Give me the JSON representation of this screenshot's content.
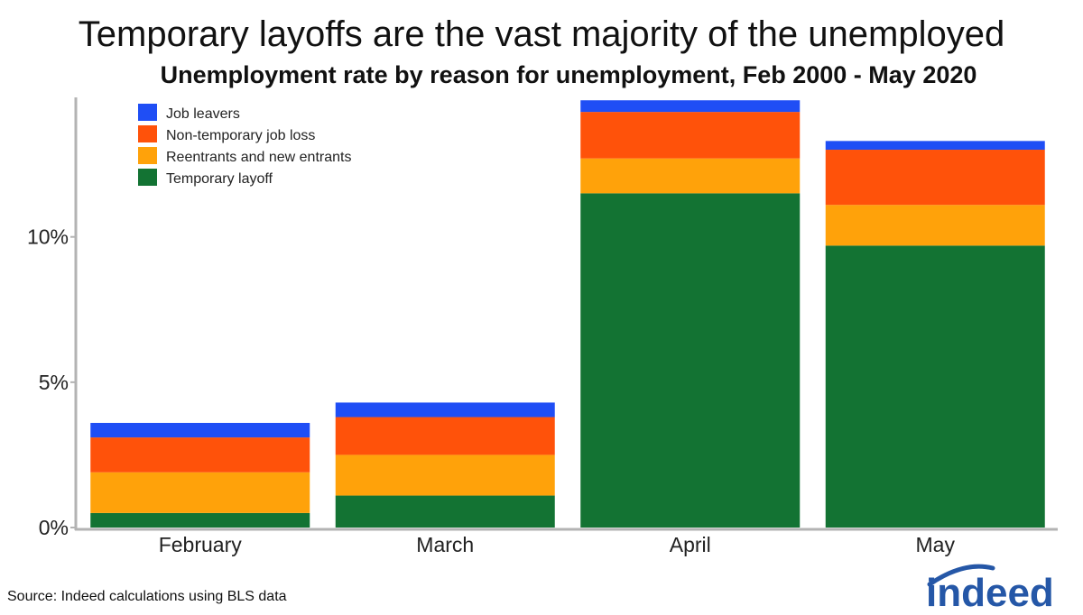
{
  "title": "Temporary layoffs are the vast majority of the unemployed",
  "subtitle": "Unemployment rate by reason for unemployment, Feb 2000 - May 2020",
  "source": "Source: Indeed calculations using BLS data",
  "logo_text": "indeed",
  "chart_data": {
    "type": "bar",
    "stacked": true,
    "categories": [
      "February",
      "March",
      "April",
      "May"
    ],
    "series": [
      {
        "name": "Temporary layoff",
        "color": "#137333",
        "values": [
          0.5,
          1.1,
          11.5,
          9.7
        ]
      },
      {
        "name": "Reentrants and new entrants",
        "color": "#FFA20A",
        "values": [
          1.4,
          1.4,
          1.2,
          1.4
        ]
      },
      {
        "name": "Non-temporary job loss",
        "color": "#FF520A",
        "values": [
          1.2,
          1.3,
          1.6,
          1.9
        ]
      },
      {
        "name": "Job leavers",
        "color": "#1F4EF5",
        "values": [
          0.5,
          0.5,
          0.4,
          0.3
        ]
      }
    ],
    "legend_order": [
      "Job leavers",
      "Non-temporary job loss",
      "Reentrants and new entrants",
      "Temporary layoff"
    ],
    "legend_position": "top-left",
    "y_ticks": [
      0,
      5,
      10
    ],
    "y_tick_labels": [
      "0%",
      "5%",
      "10%"
    ],
    "ylim": [
      0,
      14.8
    ],
    "xlabel": "",
    "ylabel": "",
    "grid": false
  }
}
